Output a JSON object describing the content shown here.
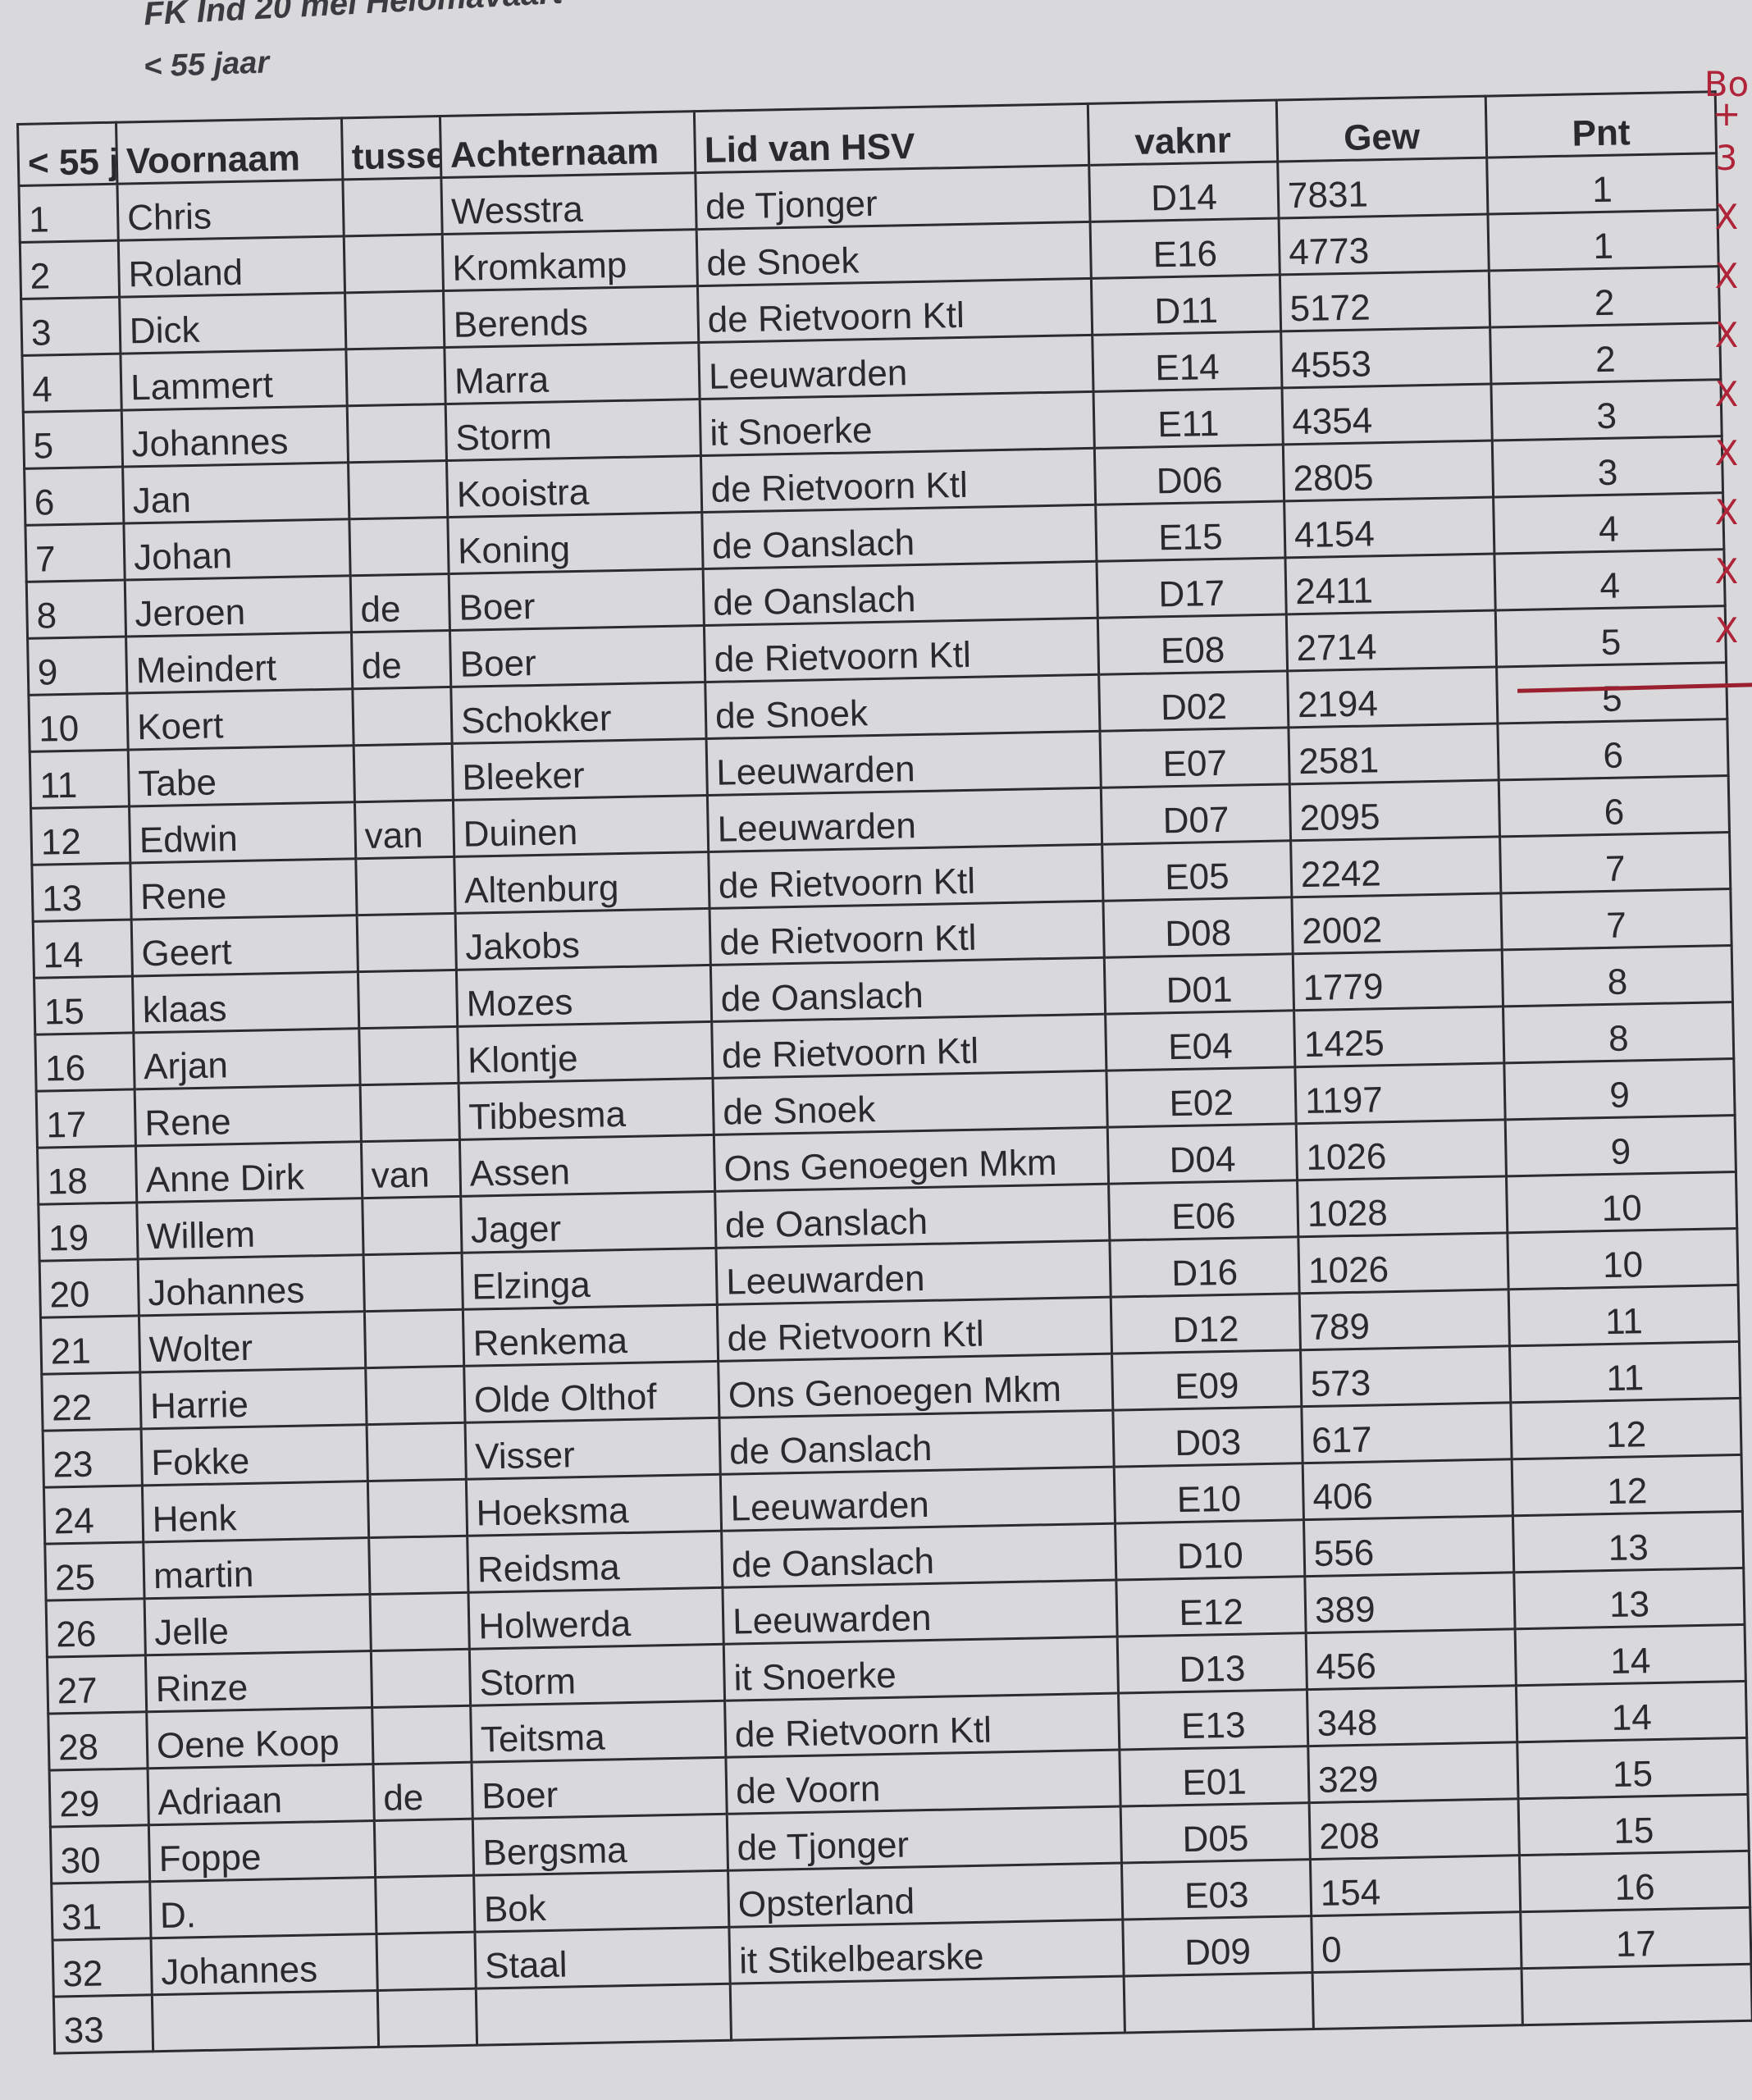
{
  "title": "FK Ind 20 mei Helomavaart",
  "subtitle": "< 55 jaar",
  "columns": [
    "< 55 j",
    "Voornaam",
    "tusse",
    "Achternaam",
    "Lid van HSV",
    "vaknr",
    "Gew",
    "Pnt"
  ],
  "rows": [
    [
      "1",
      "Chris",
      "",
      "Wesstra",
      "de Tjonger",
      "D14",
      "7831",
      "1"
    ],
    [
      "2",
      "Roland",
      "",
      "Kromkamp",
      "de Snoek",
      "E16",
      "4773",
      "1"
    ],
    [
      "3",
      "Dick",
      "",
      "Berends",
      "de Rietvoorn Ktl",
      "D11",
      "5172",
      "2"
    ],
    [
      "4",
      "Lammert",
      "",
      "Marra",
      "Leeuwarden",
      "E14",
      "4553",
      "2"
    ],
    [
      "5",
      "Johannes",
      "",
      "Storm",
      "it Snoerke",
      "E11",
      "4354",
      "3"
    ],
    [
      "6",
      "Jan",
      "",
      "Kooistra",
      "de Rietvoorn Ktl",
      "D06",
      "2805",
      "3"
    ],
    [
      "7",
      "Johan",
      "",
      "Koning",
      "de Oanslach",
      "E15",
      "4154",
      "4"
    ],
    [
      "8",
      "Jeroen",
      "de",
      "Boer",
      "de Oanslach",
      "D17",
      "2411",
      "4"
    ],
    [
      "9",
      "Meindert",
      "de",
      "Boer",
      "de Rietvoorn Ktl",
      "E08",
      "2714",
      "5"
    ],
    [
      "10",
      "Koert",
      "",
      "Schokker",
      "de Snoek",
      "D02",
      "2194",
      "5"
    ],
    [
      "11",
      "Tabe",
      "",
      "Bleeker",
      "Leeuwarden",
      "E07",
      "2581",
      "6"
    ],
    [
      "12",
      "Edwin",
      "van",
      "Duinen",
      "Leeuwarden",
      "D07",
      "2095",
      "6"
    ],
    [
      "13",
      "Rene",
      "",
      "Altenburg",
      "de Rietvoorn Ktl",
      "E05",
      "2242",
      "7"
    ],
    [
      "14",
      "Geert",
      "",
      "Jakobs",
      "de Rietvoorn Ktl",
      "D08",
      "2002",
      "7"
    ],
    [
      "15",
      "klaas",
      "",
      "Mozes",
      "de Oanslach",
      "D01",
      "1779",
      "8"
    ],
    [
      "16",
      "Arjan",
      "",
      "Klontje",
      "de Rietvoorn Ktl",
      "E04",
      "1425",
      "8"
    ],
    [
      "17",
      "Rene",
      "",
      "Tibbesma",
      "de Snoek",
      "E02",
      "1197",
      "9"
    ],
    [
      "18",
      "Anne Dirk",
      "van",
      "Assen",
      "Ons Genoegen Mkm",
      "D04",
      "1026",
      "9"
    ],
    [
      "19",
      "Willem",
      "",
      "Jager",
      "de Oanslach",
      "E06",
      "1028",
      "10"
    ],
    [
      "20",
      "Johannes",
      "",
      "Elzinga",
      "Leeuwarden",
      "D16",
      "1026",
      "10"
    ],
    [
      "21",
      "Wolter",
      "",
      "Renkema",
      "de Rietvoorn Ktl",
      "D12",
      "789",
      "11"
    ],
    [
      "22",
      "Harrie",
      "",
      "Olde Olthof",
      "Ons Genoegen Mkm",
      "E09",
      "573",
      "11"
    ],
    [
      "23",
      "Fokke",
      "",
      "Visser",
      "de Oanslach",
      "D03",
      "617",
      "12"
    ],
    [
      "24",
      "Henk",
      "",
      "Hoeksma",
      "Leeuwarden",
      "E10",
      "406",
      "12"
    ],
    [
      "25",
      "martin",
      "",
      "Reidsma",
      "de Oanslach",
      "D10",
      "556",
      "13"
    ],
    [
      "26",
      "Jelle",
      "",
      "Holwerda",
      "Leeuwarden",
      "E12",
      "389",
      "13"
    ],
    [
      "27",
      "Rinze",
      "",
      "Storm",
      "it Snoerke",
      "D13",
      "456",
      "14"
    ],
    [
      "28",
      "Oene Koop",
      "",
      "Teitsma",
      "de Rietvoorn Ktl",
      "E13",
      "348",
      "14"
    ],
    [
      "29",
      "Adriaan",
      "de",
      "Boer",
      "de Voorn",
      "E01",
      "329",
      "15"
    ],
    [
      "30",
      "Foppe",
      "",
      "Bergsma",
      "de Tjonger",
      "D05",
      "208",
      "15"
    ],
    [
      "31",
      "D.",
      "",
      "Bok",
      "Opsterland",
      "E03",
      "154",
      "16"
    ],
    [
      "32",
      "Johannes",
      "",
      "Staal",
      "it Stikelbearske",
      "D09",
      "0",
      "17"
    ],
    [
      "33",
      "",
      "",
      "",
      "",
      "",
      "",
      ""
    ]
  ],
  "handwritten_marks": [
    "Bo",
    "+",
    "3",
    "X",
    "X",
    "X",
    "X",
    "X",
    "X",
    "X",
    "X"
  ],
  "colors": {
    "ink": "#2c2c30",
    "red_pen": "#b0243a",
    "paper": "#d9d9dc"
  }
}
